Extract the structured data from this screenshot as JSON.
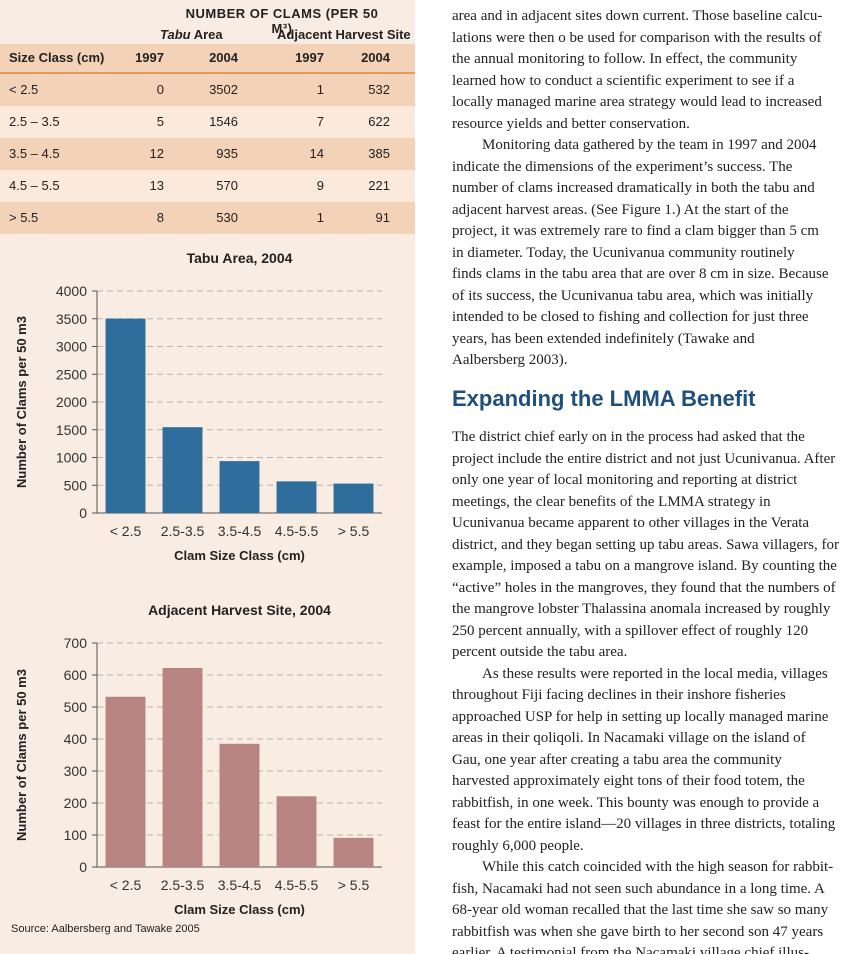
{
  "table": {
    "main_header": "NUMBER OF CLAMS (PER 50 M³)",
    "group_tabu": "Tabu",
    "group_tabu_suffix": "Area",
    "group_adjacent": "Adjacent Harvest Site",
    "columns": [
      "Size Class (cm)",
      "1997",
      "2004",
      "1997",
      "2004"
    ],
    "rows": [
      [
        "< 2.5",
        "0",
        "3502",
        "1",
        "532"
      ],
      [
        "2.5 – 3.5",
        "5",
        "1546",
        "7",
        "622"
      ],
      [
        "3.5 – 4.5",
        "12",
        "935",
        "14",
        "385"
      ],
      [
        "4.5 – 5.5",
        "13",
        "570",
        "9",
        "221"
      ],
      [
        "> 5.5",
        "8",
        "530",
        "1",
        "91"
      ]
    ]
  },
  "chart_data": [
    {
      "type": "bar",
      "title": "Tabu Area, 2004",
      "xlabel": "Clam Size Class (cm)",
      "ylabel": "Number of Clams per 50 m3",
      "categories": [
        "< 2.5",
        "2.5-3.5",
        "3.5-4.5",
        "4.5-5.5",
        "> 5.5"
      ],
      "values": [
        3502,
        1546,
        935,
        570,
        530
      ],
      "ylim": [
        0,
        4000
      ],
      "yticks": [
        "0",
        "500",
        "1000",
        "1500",
        "2000",
        "2500",
        "3000",
        "3500",
        "4000"
      ],
      "color": "#2e6d9c",
      "grid": "dashed horizontal"
    },
    {
      "type": "bar",
      "title": "Adjacent Harvest Site, 2004",
      "xlabel": "Clam Size Class (cm)",
      "ylabel": "Number of Clams per 50 m3",
      "categories": [
        "< 2.5",
        "2.5-3.5",
        "3.5-4.5",
        "4.5-5.5",
        "> 5.5"
      ],
      "values": [
        532,
        622,
        385,
        221,
        91
      ],
      "ylim": [
        0,
        700
      ],
      "yticks": [
        "0",
        "100",
        "200",
        "300",
        "400",
        "500",
        "600",
        "700"
      ],
      "color": "#b88481",
      "grid": "dashed horizontal"
    }
  ],
  "source": "Source: Aalbersberg and Tawake 2005",
  "article": {
    "para1_lines": [
      "area and in adjacent sites down current. Those baseline calcu-",
      "lations were then o be used for comparison with the results of",
      "the annual monitoring to follow. In effect, the community",
      "learned how to conduct a scientific experiment to see if a",
      "locally managed marine area strategy would lead to increased",
      "resource yields and better conservation."
    ],
    "para2_lines": [
      "Monitoring data gathered by the team in 1997 and 2004",
      "indicate the dimensions of the experiment’s success. The",
      "number of clams increased dramatically in both the tabu and",
      "adjacent harvest areas. (See Figure 1.) At the start of the",
      "project, it was extremely rare to find a clam bigger than 5 cm",
      "in diameter. Today, the Ucunivanua community routinely",
      "finds clams in the tabu area that are over 8 cm in size. Because",
      "of its success, the Ucunivanua tabu area, which was initially",
      "intended to be closed to fishing and collection for just three",
      "years, has been extended indefinitely (Tawake and",
      "Aalbersberg 2003)."
    ],
    "heading": "Expanding the LMMA Benefit",
    "para3_lines": [
      "The district chief early on in the process had asked that the",
      "project include the entire district and not just Ucunivanua. After",
      "only one year of local monitoring and reporting at district",
      "meetings, the clear benefits of the LMMA strategy in",
      "Ucunivanua became apparent to other villages in the Verata",
      "district, and they began setting up tabu areas. Sawa villagers, for",
      "example, imposed a tabu on a mangrove island. By counting the",
      "“active” holes in the mangroves, they found that the numbers of",
      "the mangrove lobster Thalassina anomala increased by roughly",
      "250 percent annually, with a spillover effect of roughly 120",
      "percent outside the tabu area."
    ],
    "para4_lines": [
      "As these results were reported in the local media, villages",
      "throughout Fiji facing declines in their inshore fisheries",
      "approached USP for help in setting up locally managed marine",
      "areas in their qoliqoli. In Nacamaki village on the island of",
      "Gau, one year after creating a tabu area the community",
      "harvested approximately eight tons of their food totem, the",
      "rabbitfish, in one week. This bounty was enough to provide a",
      "feast for the entire island—20 villages in three districts, totaling",
      "roughly 6,000 people."
    ],
    "para5_lines": [
      "While this catch coincided with the high season for rabbit-",
      "fish, Nacamaki had not seen such abundance in a long time. A",
      "68-year old woman recalled that the last time she saw so many",
      "rabbitfish was when she gave birth to her second son 47 years",
      "earlier. A testimonial from the Nacamaki village chief illus-"
    ]
  }
}
